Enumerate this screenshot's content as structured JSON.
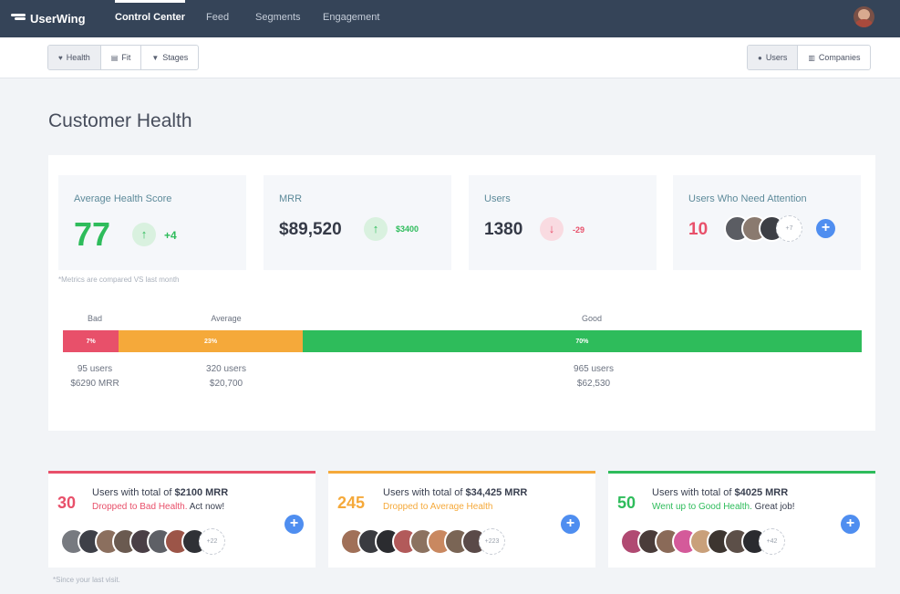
{
  "nav": {
    "brand": "UserWing",
    "items": [
      {
        "label": "Control Center",
        "active": true
      },
      {
        "label": "Feed",
        "active": false
      },
      {
        "label": "Segments",
        "active": false
      },
      {
        "label": "Engagement",
        "active": false
      }
    ]
  },
  "toolbar": {
    "views": [
      {
        "label": "Health",
        "icon": "heart-icon",
        "selected": true
      },
      {
        "label": "Fit",
        "icon": "stack-icon",
        "selected": false
      },
      {
        "label": "Stages",
        "icon": "filter-icon",
        "selected": false
      }
    ],
    "entities": [
      {
        "label": "Users",
        "icon": "user-icon",
        "selected": true
      },
      {
        "label": "Companies",
        "icon": "building-icon",
        "selected": false
      }
    ]
  },
  "page": {
    "title": "Customer Health"
  },
  "metrics": {
    "health": {
      "label": "Average Health Score",
      "value": "77",
      "delta": "+4"
    },
    "mrr": {
      "label": "MRR",
      "value": "$89,520",
      "delta": "$3400"
    },
    "users": {
      "label": "Users",
      "value": "1380",
      "delta": "-29"
    },
    "attention": {
      "label": "Users Who Need Attention",
      "value": "10",
      "more": "+7"
    },
    "note": "*Metrics are compared VS last month"
  },
  "distribution": {
    "bad": {
      "label": "Bad",
      "percent": 7,
      "percent_label": "7%",
      "users": "95 users",
      "mrr": "$6290 MRR"
    },
    "average": {
      "label": "Average",
      "percent": 23,
      "percent_label": "23%",
      "users": "320 users",
      "mrr": "$20,700"
    },
    "good": {
      "label": "Good",
      "percent": 70,
      "percent_label": "70%",
      "users": "965 users",
      "mrr": "$62,530"
    }
  },
  "cards": {
    "bad": {
      "count": "30",
      "prefix": "Users with total of ",
      "mrr": "$2100 MRR",
      "status": "Dropped to Bad Health.",
      "suffix": " Act now!",
      "more": "+22"
    },
    "average": {
      "count": "245",
      "prefix": "Users with total of ",
      "mrr": "$34,425 MRR",
      "status": "Dropped to Average Health",
      "suffix": "",
      "more": "+223"
    },
    "good": {
      "count": "50",
      "prefix": "Users with total of ",
      "mrr": "$4025 MRR",
      "status": "Went up to Good Health.",
      "suffix": " Great job!",
      "more": "+42"
    }
  },
  "footnote": "*Since your last visit.",
  "colors": {
    "bad": "#e8506a",
    "average": "#f5a93a",
    "good": "#2ebc5b",
    "accent": "#4f8ef0",
    "nav": "#354458"
  }
}
